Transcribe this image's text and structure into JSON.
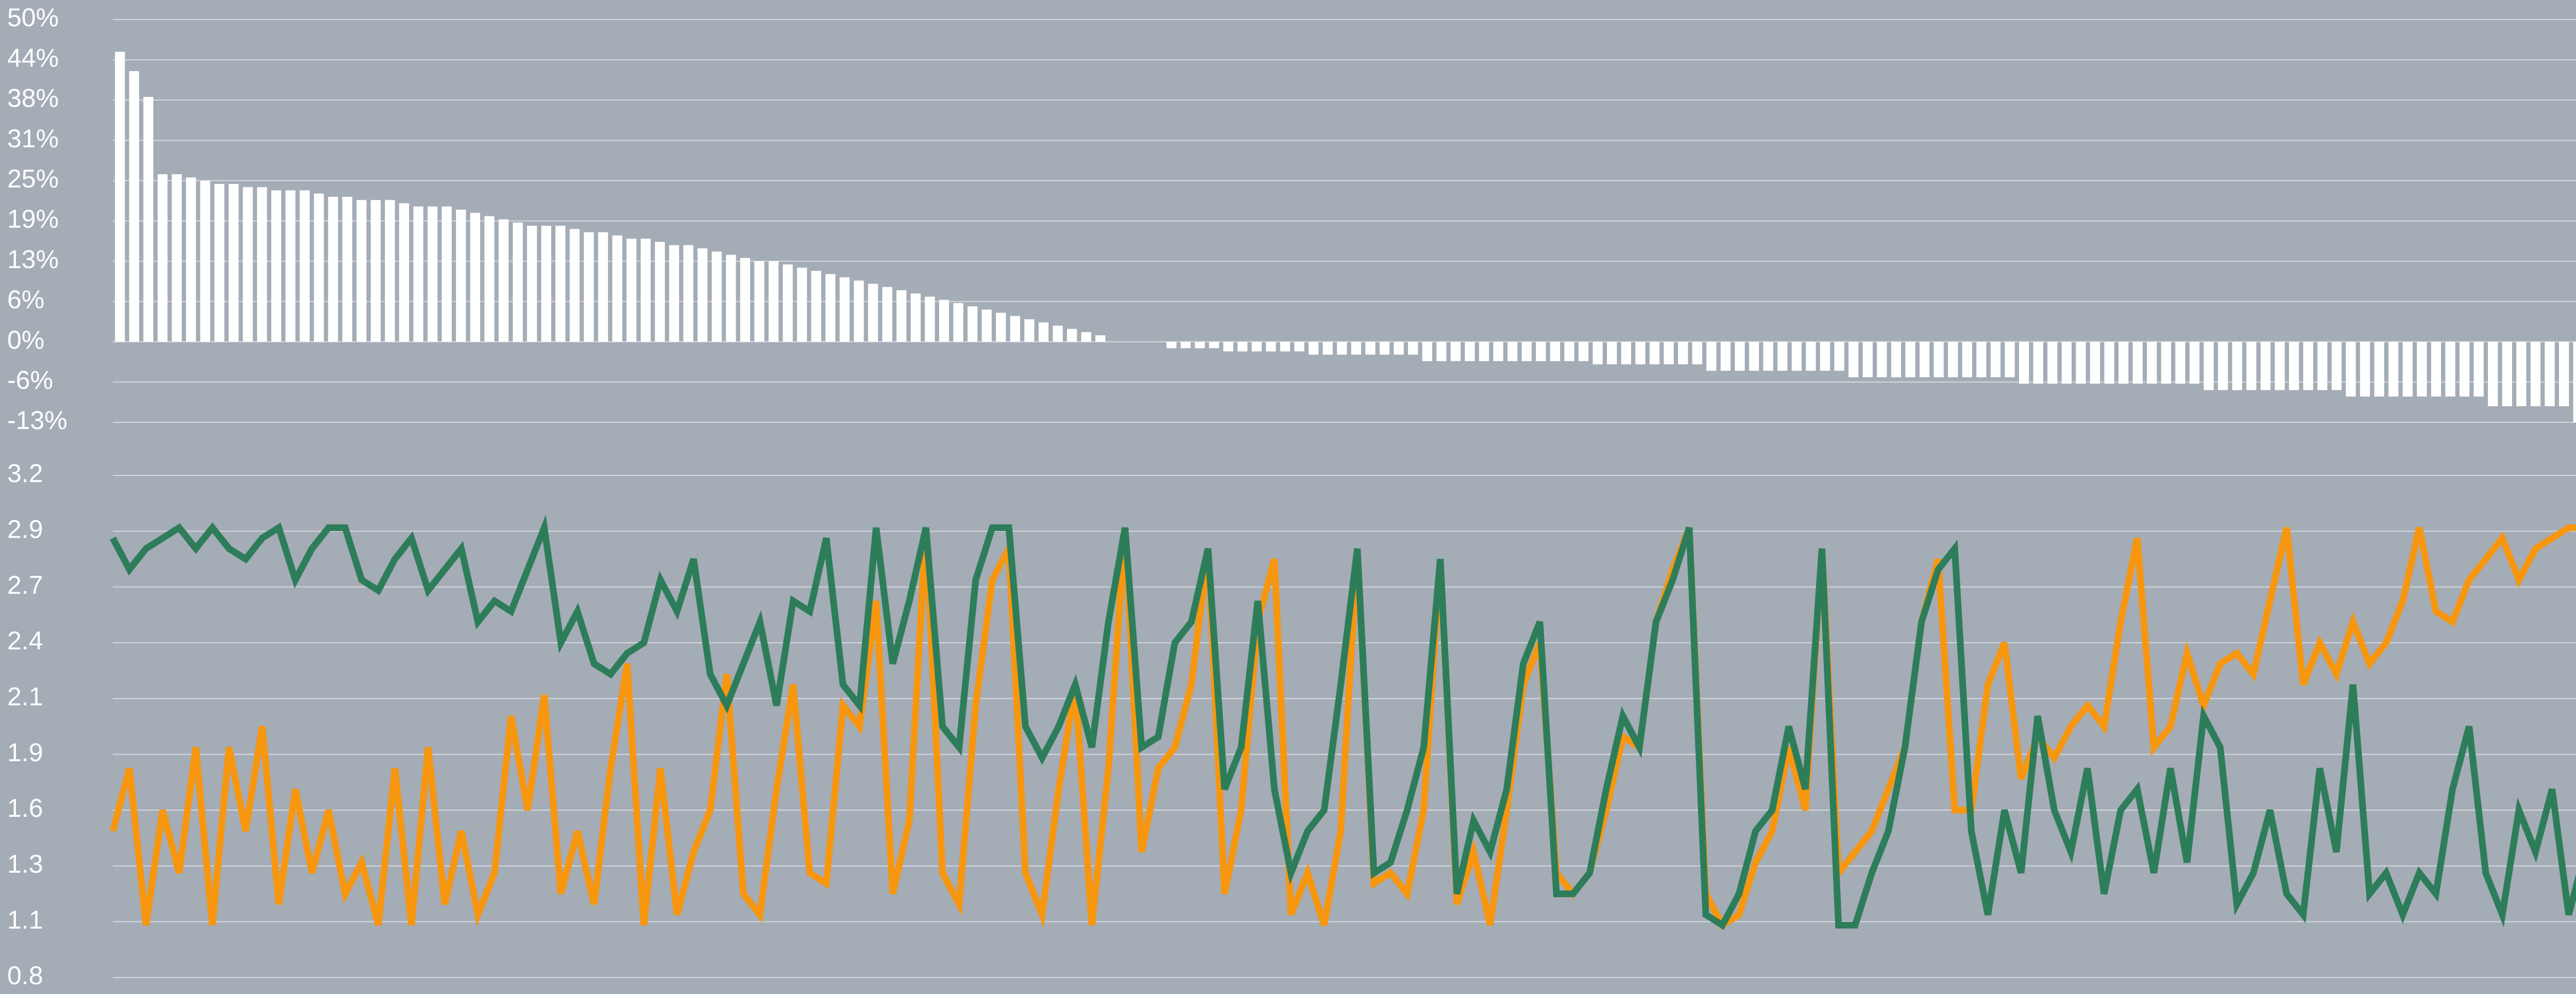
{
  "chart_data": [
    {
      "type": "bar",
      "color": "#ffffff",
      "grid": true,
      "ylim": [
        -12.5,
        50
      ],
      "yticks": [
        {
          "value": 50,
          "label": "50%"
        },
        {
          "value": 43.75,
          "label": "44%"
        },
        {
          "value": 37.5,
          "label": "38%"
        },
        {
          "value": 31.25,
          "label": "31%"
        },
        {
          "value": 25,
          "label": "25%"
        },
        {
          "value": 18.75,
          "label": "19%"
        },
        {
          "value": 12.5,
          "label": "13%"
        },
        {
          "value": 6.25,
          "label": "6%"
        },
        {
          "value": 0,
          "label": "0%"
        },
        {
          "value": -6.25,
          "label": "-6%"
        },
        {
          "value": -12.5,
          "label": "-13%"
        }
      ],
      "values": [
        45,
        42,
        38,
        26,
        26,
        25.5,
        25,
        24.5,
        24.5,
        24,
        24,
        23.5,
        23.5,
        23.5,
        23,
        22.5,
        22.5,
        22,
        22,
        22,
        21.5,
        21,
        21,
        21,
        20.5,
        20,
        19.5,
        19,
        18.5,
        18,
        18,
        18,
        17.5,
        17,
        17,
        16.5,
        16,
        16,
        15.5,
        15,
        15,
        14.5,
        14,
        13.5,
        13,
        12.5,
        12.5,
        12,
        11.5,
        11,
        10.5,
        10,
        9.5,
        9,
        8.5,
        8,
        7.5,
        7,
        6.5,
        6,
        5.5,
        5,
        4.5,
        4,
        3.5,
        3,
        2.5,
        2,
        1.5,
        1,
        0,
        0,
        0,
        0,
        -1,
        -1,
        -1,
        -1,
        -1.5,
        -1.5,
        -1.5,
        -1.5,
        -1.5,
        -1.5,
        -2,
        -2,
        -2,
        -2,
        -2,
        -2,
        -2,
        -2,
        -3,
        -3,
        -3,
        -3,
        -3,
        -3,
        -3,
        -3,
        -3,
        -3,
        -3,
        -3,
        -3.5,
        -3.5,
        -3.5,
        -3.5,
        -3.5,
        -3.5,
        -3.5,
        -3.5,
        -4.5,
        -4.5,
        -4.5,
        -4.5,
        -4.5,
        -4.5,
        -4.5,
        -4.5,
        -4.5,
        -4.5,
        -5.5,
        -5.5,
        -5.5,
        -5.5,
        -5.5,
        -5.5,
        -5.5,
        -5.5,
        -5.5,
        -5.5,
        -5.5,
        -5.5,
        -6.5,
        -6.5,
        -6.5,
        -6.5,
        -6.5,
        -6.5,
        -6.5,
        -6.5,
        -6.5,
        -6.5,
        -6.5,
        -6.5,
        -6.5,
        -7.5,
        -7.5,
        -7.5,
        -7.5,
        -7.5,
        -7.5,
        -7.5,
        -7.5,
        -7.5,
        -7.5,
        -8.5,
        -8.5,
        -8.5,
        -8.5,
        -8.5,
        -8.5,
        -8.5,
        -8.5,
        -8.5,
        -8.5,
        -10,
        -10,
        -10,
        -10,
        -10,
        -10,
        -12.5
      ]
    },
    {
      "type": "line",
      "grid": true,
      "ylim": [
        0.8,
        3.2
      ],
      "yticks": [
        {
          "value": 3.2,
          "label": "3.2"
        },
        {
          "value": 2.9333,
          "label": "2.9"
        },
        {
          "value": 2.6667,
          "label": "2.7"
        },
        {
          "value": 2.4,
          "label": "2.4"
        },
        {
          "value": 2.1333,
          "label": "2.1"
        },
        {
          "value": 1.8667,
          "label": "1.9"
        },
        {
          "value": 1.6,
          "label": "1.6"
        },
        {
          "value": 1.3333,
          "label": "1.3"
        },
        {
          "value": 1.0667,
          "label": "1.1"
        },
        {
          "value": 0.8,
          "label": "0.8"
        }
      ],
      "series": [
        {
          "color": "#f7960f",
          "values": [
            1.5,
            1.8,
            1.05,
            1.6,
            1.3,
            1.9,
            1.05,
            1.9,
            1.5,
            2.0,
            1.15,
            1.7,
            1.3,
            1.6,
            1.2,
            1.35,
            1.05,
            1.8,
            1.05,
            1.9,
            1.15,
            1.5,
            1.1,
            1.3,
            2.05,
            1.6,
            2.15,
            1.2,
            1.5,
            1.15,
            1.8,
            2.3,
            1.05,
            1.8,
            1.1,
            1.4,
            1.6,
            2.25,
            1.2,
            1.1,
            1.7,
            2.2,
            1.3,
            1.25,
            2.1,
            2.0,
            2.6,
            1.2,
            1.55,
            2.95,
            1.3,
            1.15,
            2.1,
            2.7,
            2.85,
            1.3,
            1.1,
            1.7,
            2.2,
            1.05,
            1.8,
            2.95,
            1.4,
            1.8,
            1.9,
            2.2,
            2.85,
            1.2,
            1.6,
            2.5,
            2.8,
            1.1,
            1.3,
            1.05,
            1.5,
            2.85,
            1.25,
            1.3,
            1.2,
            1.6,
            2.8,
            1.15,
            1.4,
            1.05,
            1.6,
            2.2,
            2.4,
            1.3,
            1.2,
            1.3,
            1.6,
            1.95,
            1.9,
            2.5,
            2.75,
            2.95,
            1.2,
            1.05,
            1.1,
            1.35,
            1.5,
            1.9,
            1.6,
            2.85,
            1.3,
            1.4,
            1.5,
            1.7,
            1.9,
            2.5,
            2.8,
            1.6,
            1.6,
            2.2,
            2.4,
            1.75,
            1.95,
            1.85,
            2.0,
            2.1,
            2.0,
            2.5,
            2.9,
            1.9,
            2.0,
            2.35,
            2.1,
            2.3,
            2.35,
            2.25,
            2.6,
            2.95,
            2.2,
            2.4,
            2.25,
            2.5,
            2.3,
            2.4,
            2.6,
            2.95,
            2.55,
            2.5,
            2.7,
            2.8,
            2.9,
            2.7,
            2.85,
            2.9,
            2.95,
            2.95
          ]
        },
        {
          "color": "#2e7d5a",
          "values": [
            2.9,
            2.75,
            2.85,
            2.9,
            2.95,
            2.85,
            2.95,
            2.85,
            2.8,
            2.9,
            2.95,
            2.7,
            2.85,
            2.95,
            2.95,
            2.7,
            2.65,
            2.8,
            2.9,
            2.65,
            2.75,
            2.85,
            2.5,
            2.6,
            2.55,
            2.75,
            2.95,
            2.4,
            2.55,
            2.3,
            2.25,
            2.35,
            2.4,
            2.7,
            2.55,
            2.8,
            2.25,
            2.1,
            2.3,
            2.5,
            2.1,
            2.6,
            2.55,
            2.9,
            2.2,
            2.1,
            2.95,
            2.3,
            2.6,
            2.95,
            2.0,
            1.9,
            2.7,
            2.95,
            2.95,
            2.0,
            1.85,
            2.0,
            2.2,
            1.9,
            2.5,
            2.95,
            1.9,
            1.95,
            2.4,
            2.5,
            2.85,
            1.7,
            1.9,
            2.6,
            1.7,
            1.3,
            1.5,
            1.6,
            2.2,
            2.85,
            1.3,
            1.35,
            1.6,
            1.9,
            2.8,
            1.2,
            1.55,
            1.4,
            1.7,
            2.3,
            2.5,
            1.2,
            1.2,
            1.3,
            1.7,
            2.05,
            1.9,
            2.5,
            2.7,
            2.95,
            1.1,
            1.05,
            1.2,
            1.5,
            1.6,
            2.0,
            1.7,
            2.85,
            1.05,
            1.05,
            1.3,
            1.5,
            1.9,
            2.5,
            2.75,
            2.85,
            1.5,
            1.1,
            1.6,
            1.3,
            2.05,
            1.6,
            1.4,
            1.8,
            1.2,
            1.6,
            1.7,
            1.3,
            1.8,
            1.35,
            2.05,
            1.9,
            1.15,
            1.3,
            1.6,
            1.2,
            1.1,
            1.8,
            1.4,
            2.2,
            1.2,
            1.3,
            1.1,
            1.3,
            1.2,
            1.7,
            2.0,
            1.3,
            1.1,
            1.6,
            1.4,
            1.7,
            1.1,
            1.4
          ]
        }
      ]
    }
  ]
}
